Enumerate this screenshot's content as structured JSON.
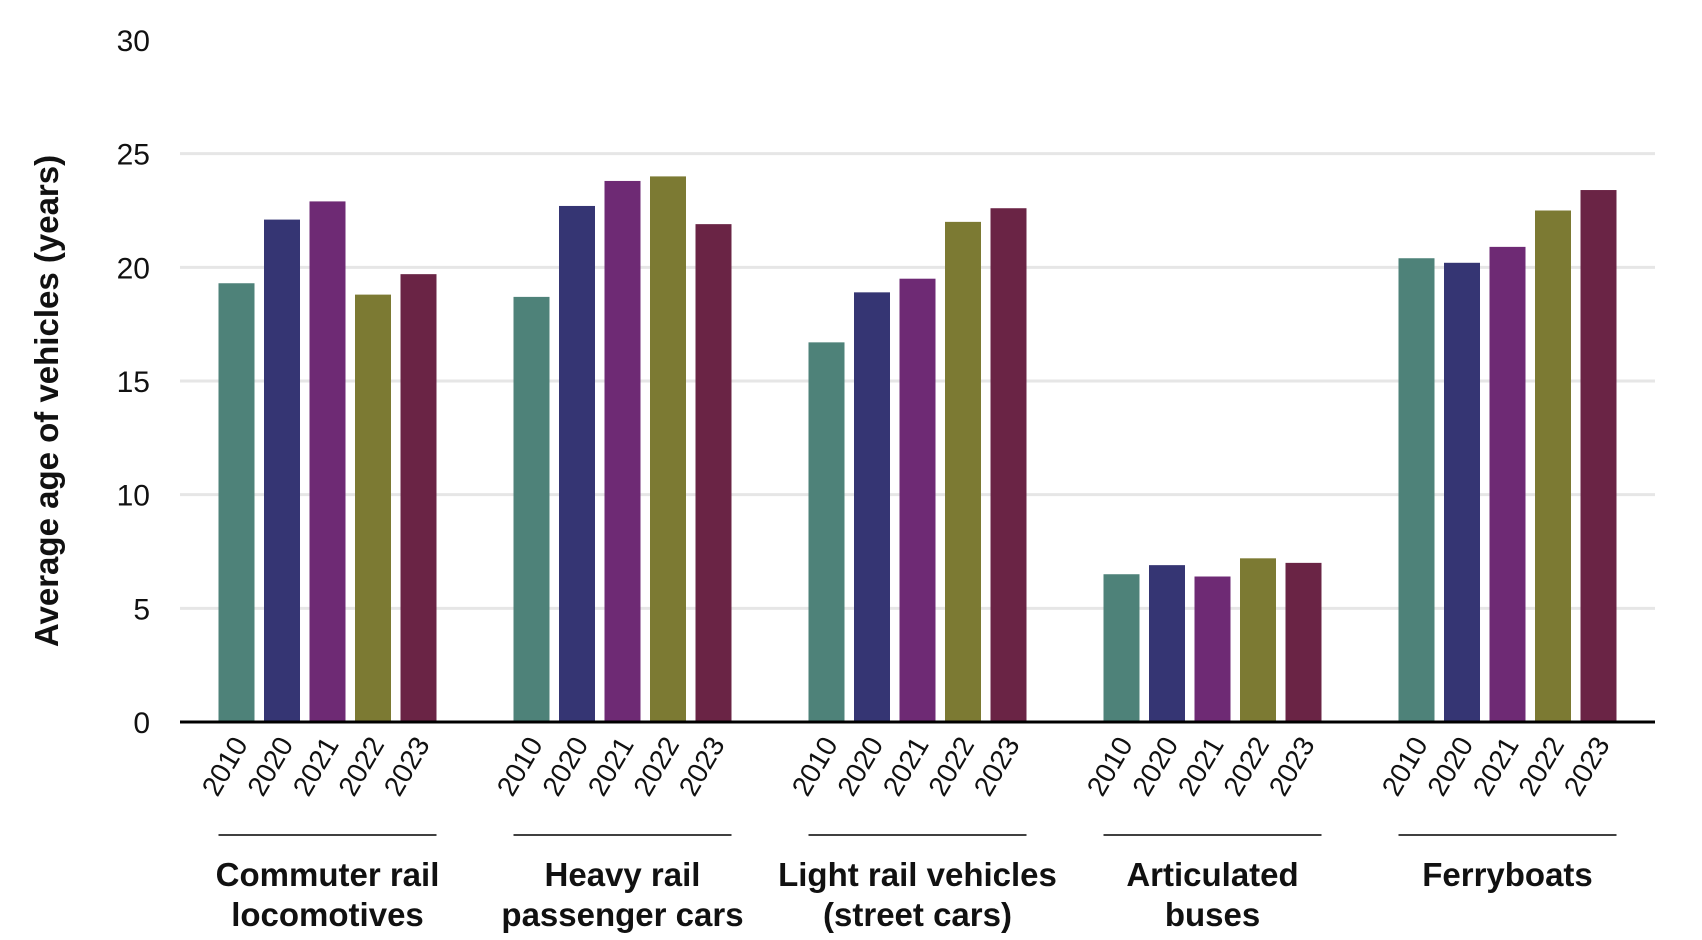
{
  "chart_data": {
    "type": "bar",
    "title": "",
    "xlabel": "",
    "ylabel": "Average age of vehicles (years)",
    "ylim": [
      0,
      30
    ],
    "yticks": [
      0,
      5,
      10,
      15,
      20,
      25,
      30
    ],
    "grid": true,
    "legend": "none",
    "categories": [
      [
        "Commuter rail",
        "locomotives"
      ],
      [
        "Heavy rail",
        "passenger cars"
      ],
      [
        "Light rail vehicles",
        "(street cars)"
      ],
      [
        "Articulated",
        "buses"
      ],
      [
        "Ferryboats"
      ]
    ],
    "series": [
      {
        "name": "2010",
        "color": "#4e8279",
        "values": [
          19.3,
          18.7,
          16.7,
          6.5,
          20.4
        ]
      },
      {
        "name": "2020",
        "color": "#353573",
        "values": [
          22.1,
          22.7,
          18.9,
          6.9,
          20.2
        ]
      },
      {
        "name": "2021",
        "color": "#6e2a74",
        "values": [
          22.9,
          23.8,
          19.5,
          6.4,
          20.9
        ]
      },
      {
        "name": "2022",
        "color": "#7c7a33",
        "values": [
          18.8,
          24.0,
          22.0,
          7.2,
          22.5
        ]
      },
      {
        "name": "2023",
        "color": "#6a2445",
        "values": [
          19.7,
          21.9,
          22.6,
          7.0,
          23.4
        ]
      }
    ]
  }
}
